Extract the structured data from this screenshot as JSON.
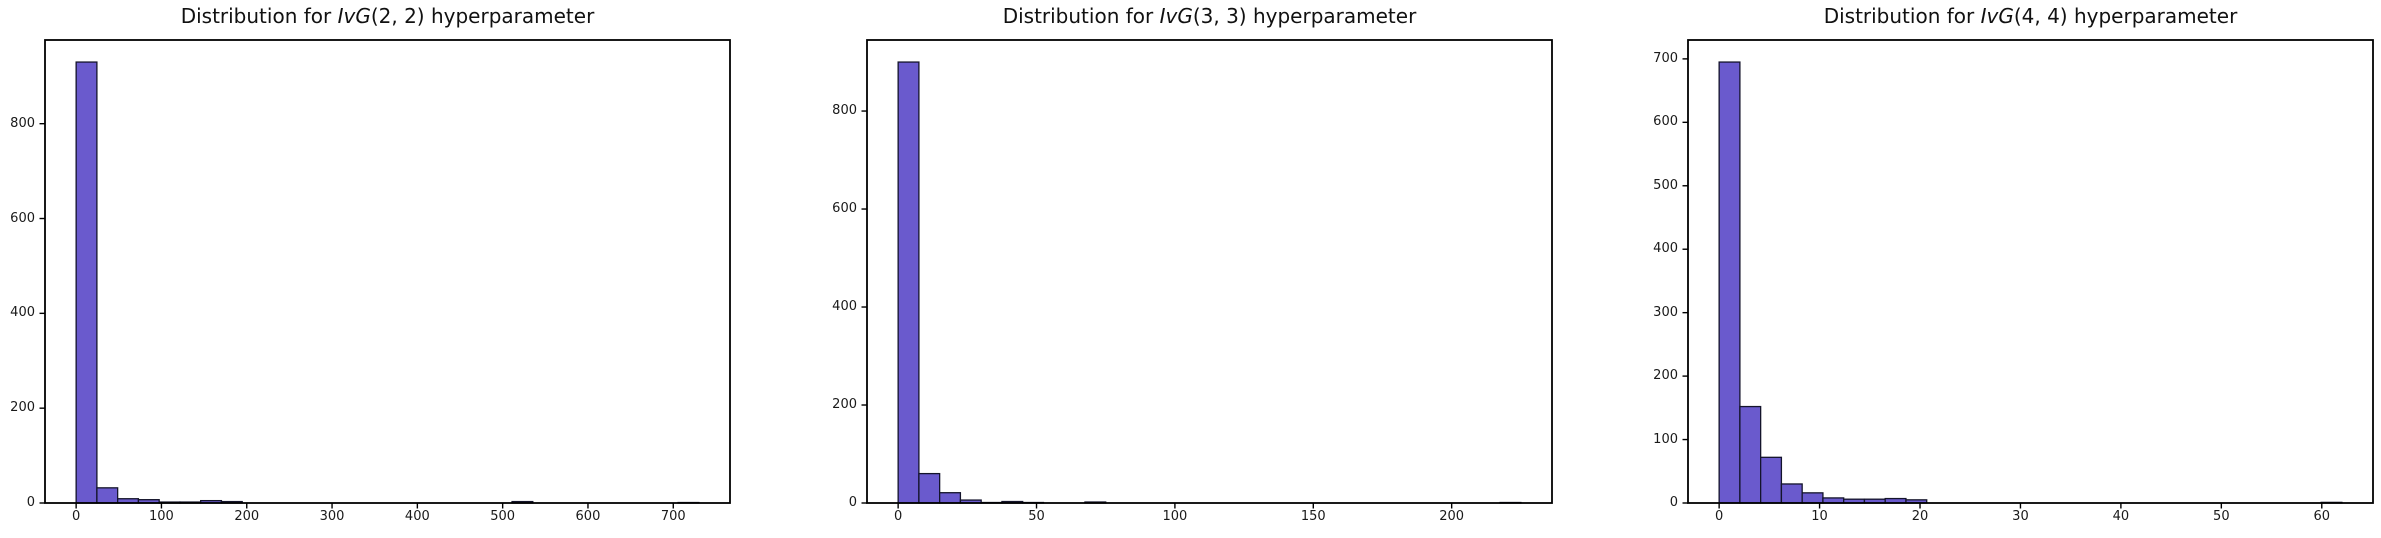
{
  "figure": {
    "kind": "matplotlib-histogram-row",
    "background": "#ffffff"
  },
  "style": {
    "bar_fill": "#6A5ACD",
    "bar_edge": "#14142b",
    "spine_color": "#000000",
    "tick_color": "#000000",
    "text_color": "#1a1a1a"
  },
  "chart_data": [
    {
      "type": "bar",
      "subtype": "histogram",
      "slug": "ivg-2-2",
      "title": "Distribution for IvG(2, 2) hyperparameter",
      "title_parts": {
        "prefix": "Distribution for ",
        "math_italic": "IvG",
        "math_args": "(2, 2)",
        "suffix": " hyperparameter"
      },
      "bin_start": 0,
      "bin_width": 24.333,
      "counts": [
        930,
        32,
        9,
        7,
        2,
        2,
        5,
        3,
        0,
        0,
        0,
        0,
        0,
        0,
        0,
        0,
        0,
        0,
        0,
        0,
        0,
        3,
        0,
        0,
        0,
        0,
        0,
        0,
        0,
        1
      ],
      "xlim": [
        -36.5,
        766.5
      ],
      "ylim": [
        0,
        976.5
      ],
      "xticks": [
        0,
        100,
        200,
        300,
        400,
        500,
        600,
        700
      ],
      "yticks": [
        0,
        200,
        400,
        600,
        800
      ],
      "xlabel": "",
      "ylabel": "",
      "grid": false,
      "legend": null
    },
    {
      "type": "bar",
      "subtype": "histogram",
      "slug": "ivg-3-3",
      "title": "Distribution for IvG(3, 3) hyperparameter",
      "title_parts": {
        "prefix": "Distribution for ",
        "math_italic": "IvG",
        "math_args": "(3, 3)",
        "suffix": " hyperparameter"
      },
      "bin_start": 0,
      "bin_width": 7.5,
      "counts": [
        900,
        60,
        21,
        6,
        1,
        3,
        1,
        0,
        0,
        2,
        0,
        0,
        0,
        0,
        0,
        0,
        0,
        0,
        0,
        0,
        0,
        0,
        0,
        0,
        0,
        0,
        0,
        0,
        0,
        1
      ],
      "xlim": [
        -11.25,
        236.25
      ],
      "ylim": [
        0,
        945
      ],
      "xticks": [
        0,
        50,
        100,
        150,
        200
      ],
      "yticks": [
        0,
        200,
        400,
        600,
        800
      ],
      "xlabel": "",
      "ylabel": "",
      "grid": false,
      "legend": null
    },
    {
      "type": "bar",
      "subtype": "histogram",
      "slug": "ivg-4-4",
      "title": "Distribution for IvG(4, 4) hyperparameter",
      "title_parts": {
        "prefix": "Distribution for ",
        "math_italic": "IvG",
        "math_args": "(4, 4)",
        "suffix": " hyperparameter"
      },
      "bin_start": 0,
      "bin_width": 2.0667,
      "counts": [
        695,
        152,
        72,
        30,
        16,
        8,
        6,
        6,
        7,
        5,
        0,
        0,
        0,
        0,
        0,
        0,
        0,
        0,
        0,
        0,
        0,
        0,
        0,
        0,
        0,
        0,
        0,
        0,
        0,
        1
      ],
      "xlim": [
        -3.1,
        65.1
      ],
      "ylim": [
        0,
        729.75
      ],
      "xticks": [
        0,
        10,
        20,
        30,
        40,
        50,
        60
      ],
      "yticks": [
        0,
        100,
        200,
        300,
        400,
        500,
        600,
        700
      ],
      "xlabel": "",
      "ylabel": "",
      "grid": false,
      "legend": null
    }
  ]
}
